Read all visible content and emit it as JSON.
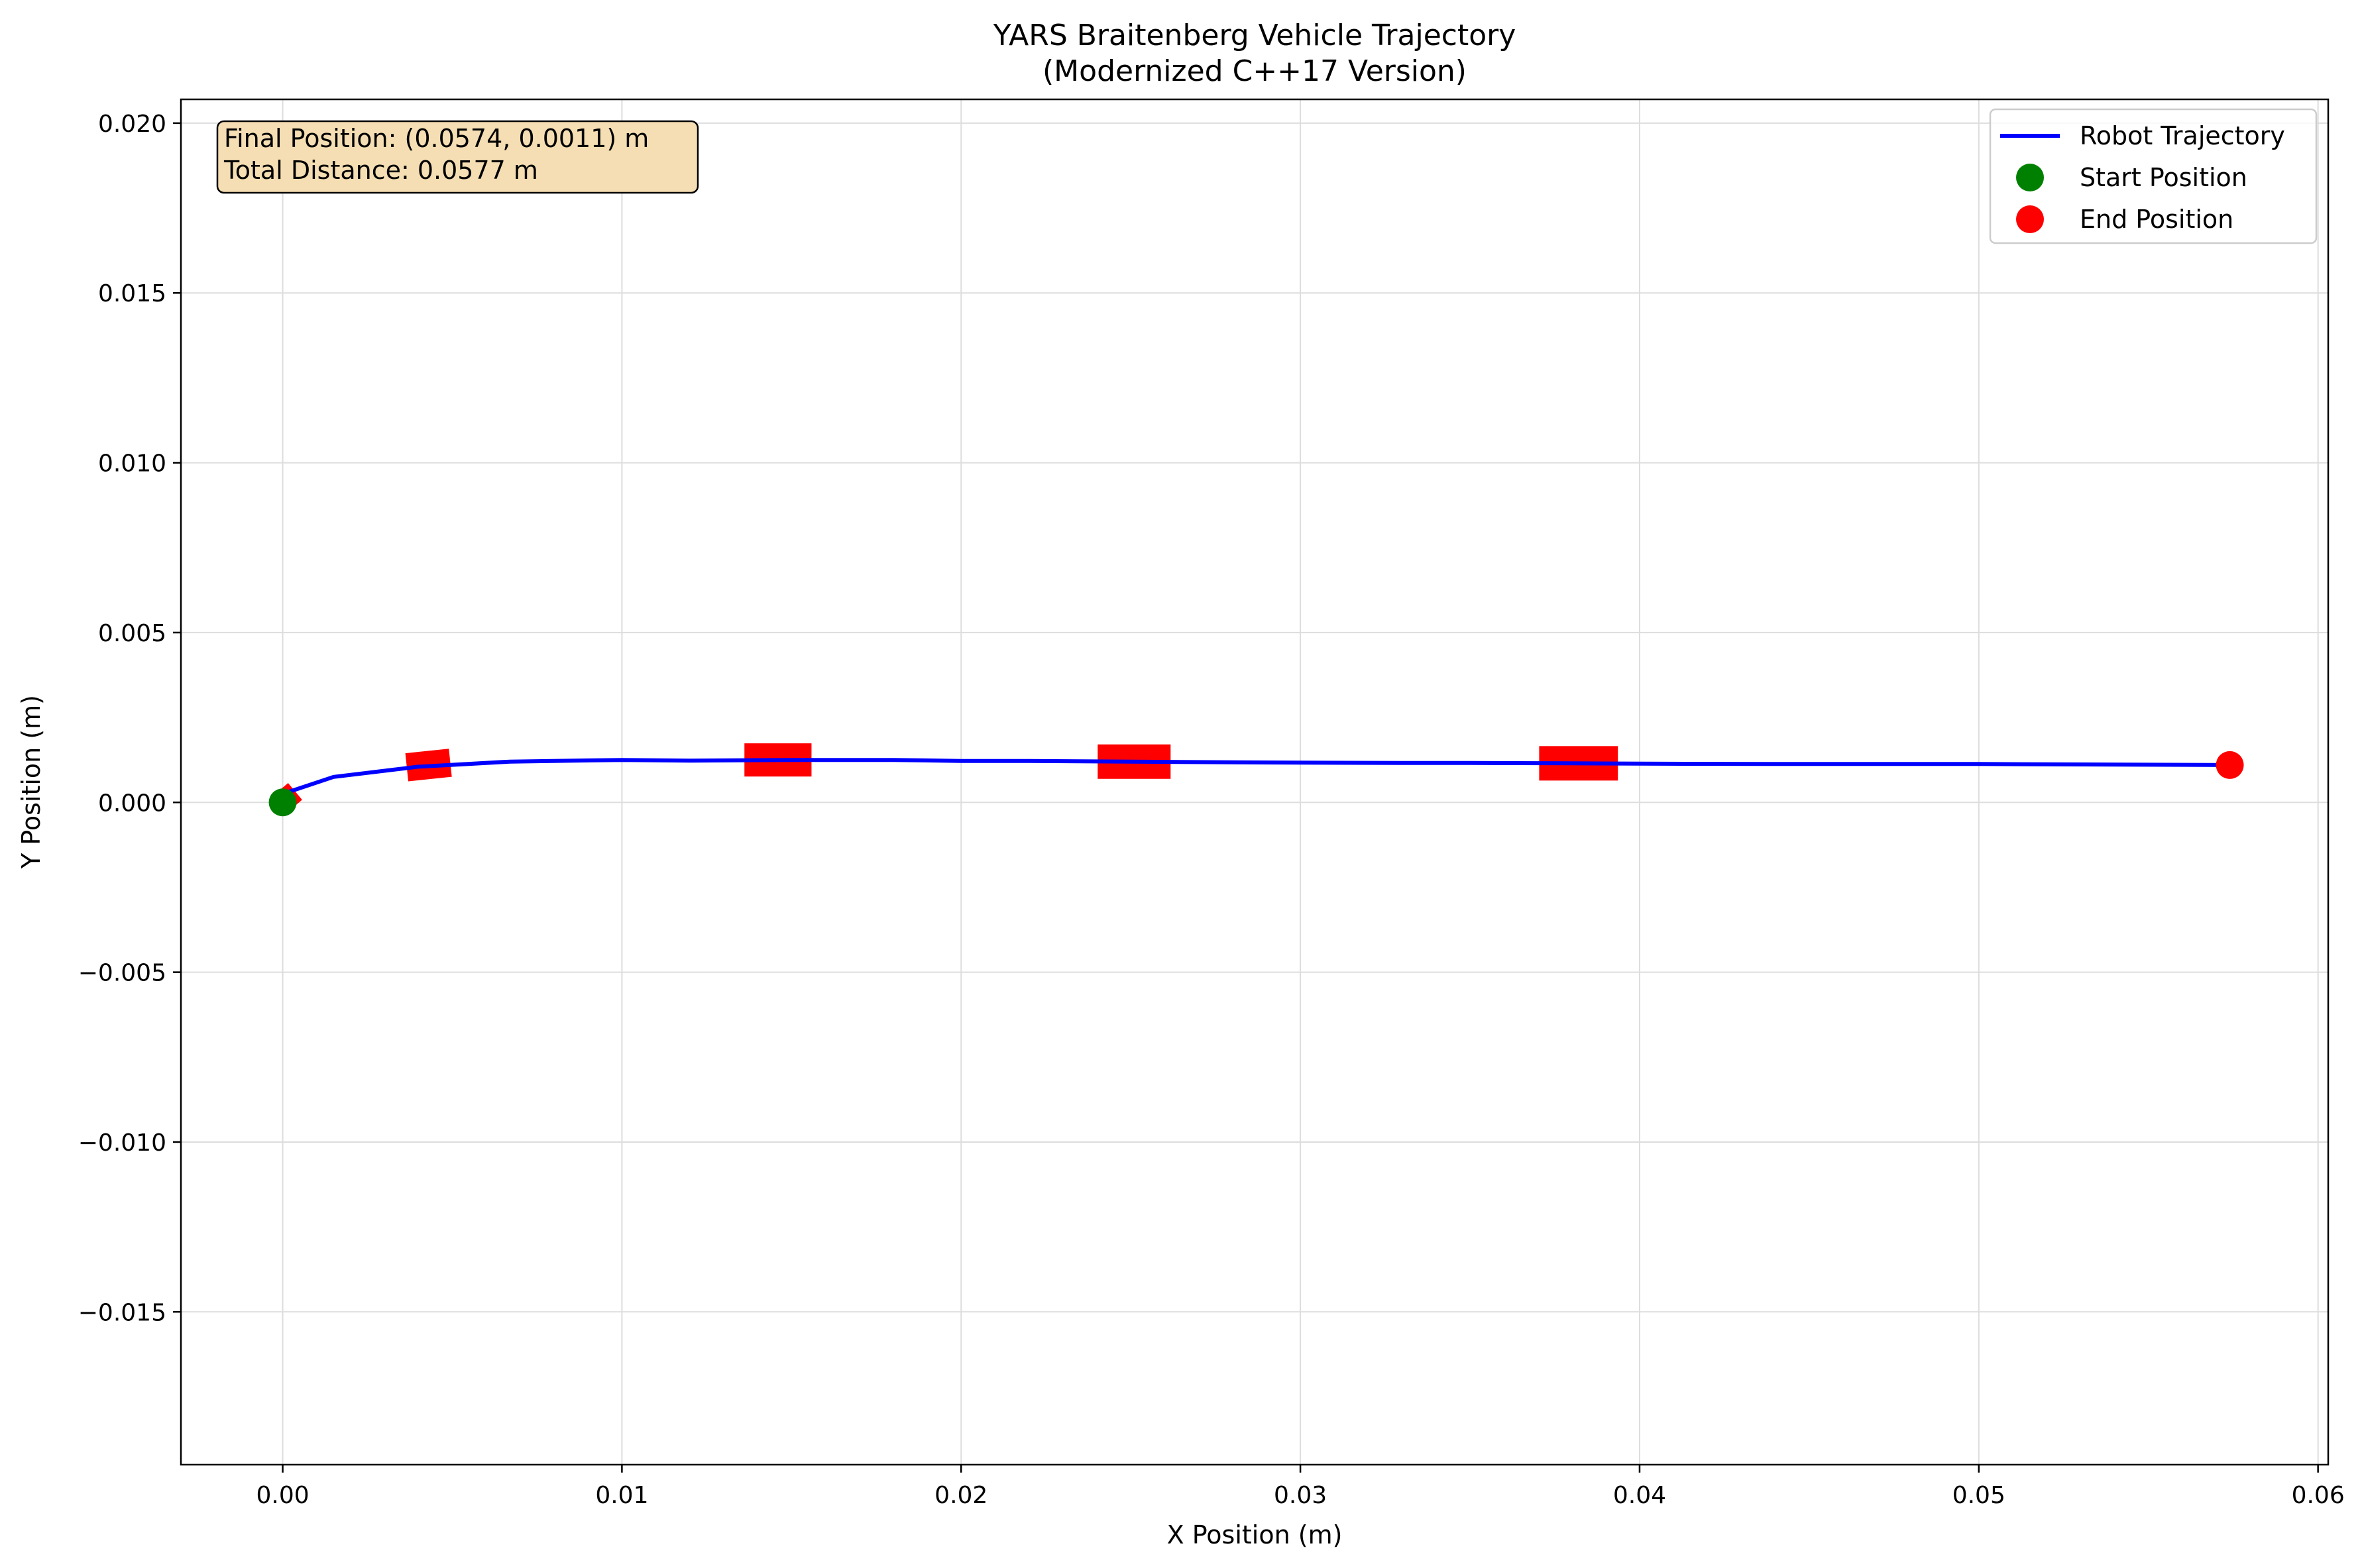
{
  "chart_data": {
    "type": "line",
    "title": "YARS Braitenberg Vehicle Trajectory",
    "subtitle": "(Modernized C++17 Version)",
    "xlabel": "X Position (m)",
    "ylabel": "Y Position (m)",
    "xlim": [
      -0.003,
      0.0603
    ],
    "ylim": [
      -0.0195,
      0.0207
    ],
    "grid": true,
    "legend_location": "top-right",
    "x_ticks": [
      0.0,
      0.01,
      0.02,
      0.03,
      0.04,
      0.05,
      0.06
    ],
    "x_tick_labels": [
      "0.00",
      "0.01",
      "0.02",
      "0.03",
      "0.04",
      "0.05",
      "0.06"
    ],
    "y_ticks": [
      0.02,
      0.015,
      0.01,
      0.005,
      0.0,
      -0.005,
      -0.01,
      -0.015
    ],
    "y_tick_labels": [
      "0.020",
      "0.015",
      "0.010",
      "0.005",
      "0.000",
      "−0.005",
      "−0.010",
      "−0.015"
    ],
    "series": [
      {
        "name": "Robot Trajectory",
        "color": "#0000ff",
        "x": [
          0.0,
          0.0015,
          0.004,
          0.0067,
          0.01,
          0.012,
          0.015,
          0.018,
          0.02,
          0.022,
          0.025,
          0.028,
          0.03,
          0.033,
          0.035,
          0.038,
          0.04,
          0.044,
          0.05,
          0.0574
        ],
        "y": [
          0.00025,
          0.00075,
          0.00105,
          0.0012,
          0.00125,
          0.00123,
          0.00125,
          0.00125,
          0.00122,
          0.00122,
          0.0012,
          0.00118,
          0.00117,
          0.00116,
          0.00116,
          0.00115,
          0.00114,
          0.00113,
          0.00113,
          0.0011
        ]
      }
    ],
    "start_position": {
      "name": "Start Position",
      "x": 0.0,
      "y": 0.0,
      "color": "#008000"
    },
    "end_position": {
      "name": "End Position",
      "x": 0.0574,
      "y": 0.0011,
      "color": "#ff0000"
    },
    "heading_markers": [
      {
        "x": 0.0001,
        "y": 0.0001,
        "angle": 50,
        "scale": 0.3
      },
      {
        "x": 0.0043,
        "y": 0.0011,
        "angle": -6,
        "scale": 0.6
      },
      {
        "x": 0.0146,
        "y": 0.00125,
        "angle": 0,
        "scale": 0.92
      },
      {
        "x": 0.0251,
        "y": 0.0012,
        "angle": 0,
        "scale": 1.0
      },
      {
        "x": 0.0382,
        "y": 0.00115,
        "angle": 0,
        "scale": 1.08
      }
    ],
    "marker_color": "#ff0000",
    "info_box": {
      "line1": "Final Position: (0.0574, 0.0011) m",
      "line2": "Total Distance: 0.0577 m",
      "background": "#f5deb3"
    },
    "legend": [
      "Robot Trajectory",
      "Start Position",
      "End Position"
    ]
  }
}
